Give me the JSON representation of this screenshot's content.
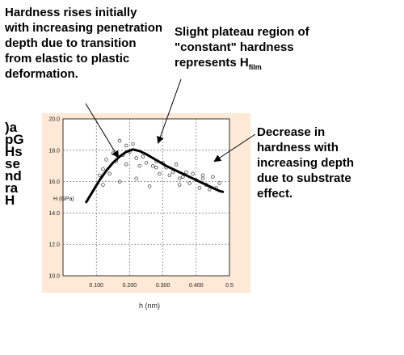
{
  "annotations": {
    "left": "Hardness rises initially with increasing penetration depth due to transition from elastic to plastic deformation.",
    "top_main": "Slight plateau region of \"constant\" hardness represents H",
    "top_sub": "film",
    "right": "Decrease in hardness with increasing depth due to substrate effect."
  },
  "vertical_label": ")apGHssendraH",
  "chart_data": {
    "type": "scatter",
    "title": "",
    "xlabel": "h (nm)",
    "ylabel": "H (GPa)",
    "xlim": [
      0.0,
      0.5
    ],
    "ylim": [
      10.0,
      20.0
    ],
    "grid": true,
    "x_ticks": [
      {
        "value": 0.1,
        "label": "0.100"
      },
      {
        "value": 0.2,
        "label": "0.200"
      },
      {
        "value": 0.3,
        "label": "0.300"
      },
      {
        "value": 0.4,
        "label": "0.400"
      },
      {
        "value": 0.5,
        "label": "0.5"
      }
    ],
    "y_ticks": [
      {
        "value": 10,
        "label": "10.0"
      },
      {
        "value": 12,
        "label": "12.0"
      },
      {
        "value": 14,
        "label": "14.0"
      },
      {
        "value": 16,
        "label": "16.0"
      },
      {
        "value": 18,
        "label": "18.0"
      },
      {
        "value": 20,
        "label": "20.0"
      }
    ],
    "series": [
      {
        "kind": "points",
        "x": [
          0.11,
          0.12,
          0.13,
          0.14,
          0.15,
          0.16,
          0.17,
          0.17,
          0.18,
          0.19,
          0.19,
          0.2,
          0.21,
          0.22,
          0.22,
          0.23,
          0.24,
          0.25,
          0.26,
          0.27,
          0.28,
          0.29,
          0.3,
          0.31,
          0.32,
          0.33,
          0.34,
          0.35,
          0.36,
          0.37,
          0.38,
          0.39,
          0.4,
          0.41,
          0.42,
          0.43,
          0.44,
          0.45,
          0.46,
          0.47,
          0.12,
          0.28,
          0.35,
          0.42
        ],
        "y": [
          16.4,
          16.8,
          17.4,
          16.5,
          17.8,
          17.3,
          18.6,
          16.0,
          17.7,
          18.3,
          17.1,
          17.9,
          18.4,
          16.2,
          17.5,
          17.0,
          17.6,
          17.2,
          15.7,
          17.0,
          16.9,
          16.5,
          17.2,
          16.9,
          16.4,
          16.6,
          17.1,
          16.2,
          16.3,
          16.6,
          15.9,
          16.5,
          16.1,
          15.6,
          16.4,
          15.8,
          15.5,
          16.3,
          15.6,
          15.9,
          15.8,
          17.3,
          15.8,
          16.2
        ]
      },
      {
        "kind": "fit",
        "x": [
          0.07,
          0.09,
          0.11,
          0.13,
          0.15,
          0.17,
          0.19,
          0.21,
          0.23,
          0.25,
          0.27,
          0.29,
          0.31,
          0.33,
          0.35,
          0.37,
          0.39,
          0.41,
          0.43,
          0.45,
          0.47,
          0.48
        ],
        "y": [
          14.7,
          15.4,
          16.1,
          16.7,
          17.2,
          17.6,
          17.9,
          18.05,
          17.95,
          17.75,
          17.5,
          17.25,
          17.0,
          16.8,
          16.6,
          16.4,
          16.2,
          16.0,
          15.8,
          15.6,
          15.4,
          15.35
        ]
      }
    ]
  }
}
